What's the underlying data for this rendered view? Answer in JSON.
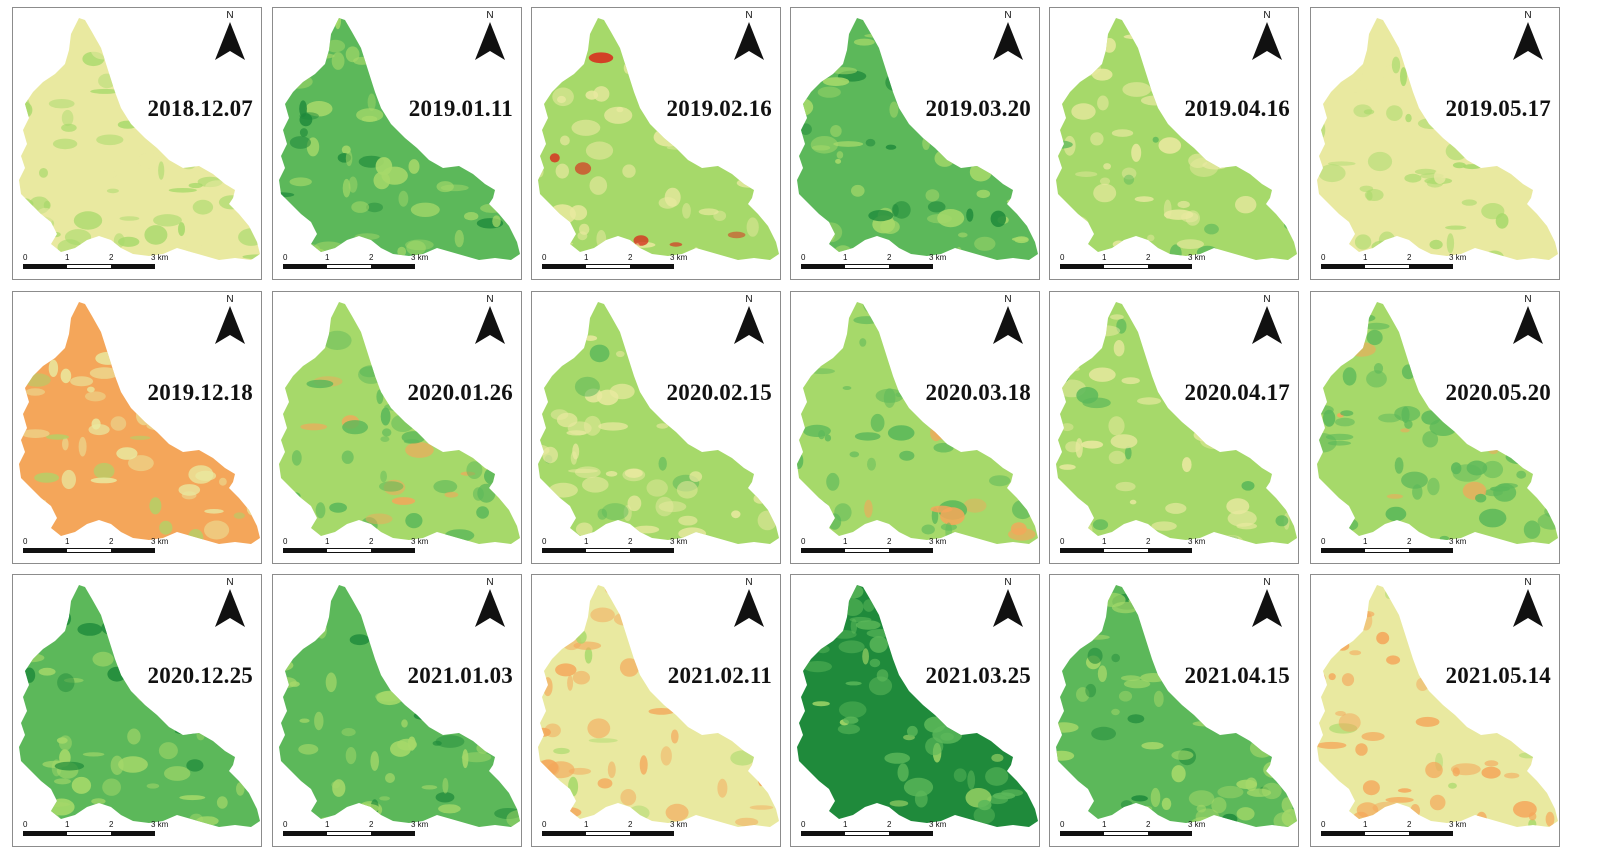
{
  "figure": {
    "north_label": "N",
    "scale": {
      "ticks": [
        "0",
        "1",
        "2",
        "3 km"
      ]
    },
    "palette": {
      "dark_green": "#1f8a3b",
      "green": "#5cb85a",
      "light_green": "#a6d96a",
      "pale": "#e9e9a0",
      "orange": "#f4a65a",
      "red": "#d7301f"
    },
    "panels": [
      {
        "date": "2018.12.07",
        "tone": "pale"
      },
      {
        "date": "2019.01.11",
        "tone": "green"
      },
      {
        "date": "2019.02.16",
        "tone": "mixed-red"
      },
      {
        "date": "2019.03.20",
        "tone": "green"
      },
      {
        "date": "2019.04.16",
        "tone": "light_green"
      },
      {
        "date": "2019.05.17",
        "tone": "pale"
      },
      {
        "date": "2019.12.18",
        "tone": "orange"
      },
      {
        "date": "2020.01.26",
        "tone": "mixed"
      },
      {
        "date": "2020.02.15",
        "tone": "light_green"
      },
      {
        "date": "2020.03.18",
        "tone": "mixed"
      },
      {
        "date": "2020.04.17",
        "tone": "light_green"
      },
      {
        "date": "2020.05.20",
        "tone": "mixed"
      },
      {
        "date": "2020.12.25",
        "tone": "green"
      },
      {
        "date": "2021.01.03",
        "tone": "green"
      },
      {
        "date": "2021.02.11",
        "tone": "mixed-orange"
      },
      {
        "date": "2021.03.25",
        "tone": "dark_green"
      },
      {
        "date": "2021.04.15",
        "tone": "green"
      },
      {
        "date": "2021.05.14",
        "tone": "mixed-orange"
      }
    ]
  }
}
